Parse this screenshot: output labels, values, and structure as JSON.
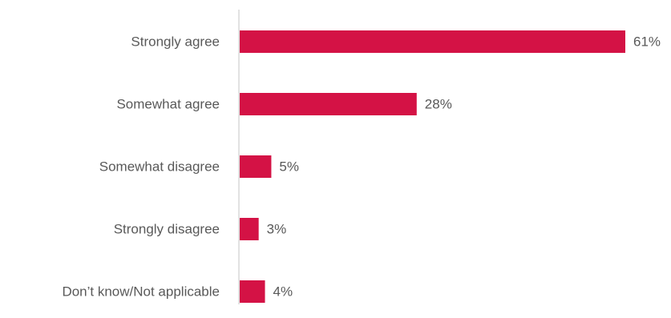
{
  "chart_data": {
    "type": "bar",
    "orientation": "horizontal",
    "title": "",
    "xlabel": "",
    "ylabel": "",
    "categories": [
      "Strongly agree",
      "Somewhat agree",
      "Somewhat disagree",
      "Strongly disagree",
      "Don’t know/Not applicable"
    ],
    "values": [
      61,
      28,
      5,
      3,
      4
    ],
    "value_labels": [
      "61%",
      "28%",
      "5%",
      "3%",
      "4%"
    ],
    "unit": "%",
    "xlim": [
      0,
      61
    ],
    "grid": false,
    "legend": "none",
    "colors": {
      "bar": "#d41245",
      "axis": "#d9d9d9",
      "text": "#595959"
    }
  }
}
